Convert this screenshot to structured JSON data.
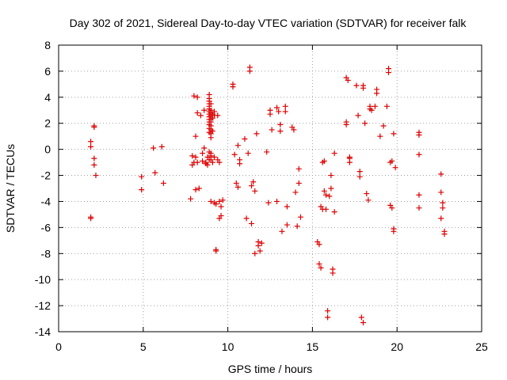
{
  "chart_data": {
    "type": "scatter",
    "title": "Day 302 of 2021, Sidereal Day-to-day VTEC variation (SDTVAR) for receiver falk",
    "xlabel": "GPS time / hours",
    "ylabel": "SDTVAR / TECUs",
    "xlim": [
      0,
      25
    ],
    "ylim": [
      -14,
      8
    ],
    "xticks": [
      0,
      5,
      10,
      15,
      20,
      25
    ],
    "yticks": [
      -14,
      -12,
      -10,
      -8,
      -6,
      -4,
      -2,
      0,
      2,
      4,
      6,
      8
    ],
    "grid": true,
    "marker": "+",
    "color": "#dd0000",
    "series": [
      {
        "name": "SDTVAR",
        "x": [
          1.9,
          1.9,
          1.9,
          1.9,
          2.1,
          2.1,
          2.1,
          2.1,
          2.2,
          4.9,
          4.9,
          5.6,
          5.7,
          6.1,
          6.2,
          7.8,
          7.9,
          7.9,
          8.0,
          8.0,
          8.1,
          8.1,
          8.1,
          8.2,
          8.2,
          8.2,
          8.3,
          8.4,
          8.5,
          8.5,
          8.6,
          8.6,
          8.7,
          8.7,
          8.8,
          8.8,
          8.9,
          8.9,
          8.9,
          8.9,
          8.9,
          8.9,
          8.9,
          8.9,
          8.9,
          8.9,
          8.9,
          8.9,
          8.9,
          8.9,
          8.9,
          8.9,
          9.0,
          9.0,
          9.0,
          9.0,
          9.0,
          9.0,
          9.0,
          9.0,
          9.0,
          9.0,
          9.0,
          9.0,
          9.0,
          9.0,
          9.1,
          9.1,
          9.1,
          9.1,
          9.2,
          9.2,
          9.2,
          9.2,
          9.3,
          9.3,
          9.3,
          9.4,
          9.4,
          9.5,
          9.5,
          9.5,
          9.6,
          9.6,
          9.7,
          10.3,
          10.3,
          10.4,
          10.5,
          10.6,
          10.6,
          10.7,
          10.7,
          11.0,
          11.1,
          11.2,
          11.3,
          11.3,
          11.4,
          11.4,
          11.5,
          11.6,
          11.6,
          11.7,
          11.8,
          11.8,
          11.9,
          12.0,
          12.3,
          12.4,
          12.5,
          12.5,
          12.6,
          12.9,
          12.9,
          13.0,
          13.1,
          13.1,
          13.2,
          13.4,
          13.4,
          13.5,
          13.5,
          13.8,
          13.9,
          14.0,
          14.1,
          14.2,
          14.2,
          14.3,
          15.3,
          15.4,
          15.4,
          15.5,
          15.5,
          15.6,
          15.6,
          15.7,
          15.7,
          15.8,
          15.8,
          15.9,
          15.9,
          16.0,
          16.1,
          16.1,
          16.2,
          16.2,
          16.3,
          16.3,
          17.0,
          17.0,
          17.0,
          17.1,
          17.2,
          17.2,
          17.2,
          17.6,
          17.7,
          17.8,
          17.8,
          17.9,
          18.0,
          18.0,
          18.0,
          18.1,
          18.2,
          18.3,
          18.4,
          18.4,
          18.5,
          18.7,
          18.8,
          18.8,
          19.0,
          19.2,
          19.4,
          19.5,
          19.5,
          19.6,
          19.6,
          19.7,
          19.7,
          19.8,
          19.8,
          19.8,
          19.9,
          21.3,
          21.3,
          21.3,
          21.3,
          21.3,
          22.6,
          22.6,
          22.6,
          22.7,
          22.7,
          22.8,
          22.8
        ],
        "y": [
          0.6,
          0.2,
          -5.2,
          -5.3,
          1.8,
          1.7,
          -0.7,
          -1.2,
          -2.0,
          -2.1,
          -3.1,
          0.1,
          -1.8,
          0.2,
          -2.6,
          -3.8,
          -0.5,
          -1.2,
          4.1,
          -1.0,
          1.0,
          -3.1,
          -0.6,
          -1.0,
          2.8,
          4.0,
          -3.0,
          2.6,
          -0.3,
          -0.9,
          3.0,
          0.1,
          -1.1,
          -1.0,
          -0.6,
          -1.2,
          4.2,
          3.9,
          3.7,
          3.5,
          3.3,
          3.1,
          2.9,
          2.7,
          2.5,
          2.3,
          2.1,
          1.9,
          1.6,
          1.3,
          -0.2,
          -0.8,
          3.5,
          3.0,
          2.8,
          2.6,
          2.3,
          2.1,
          1.8,
          1.5,
          1.2,
          -0.5,
          -0.8,
          -4.0,
          -0.3,
          0.9,
          2.7,
          2.4,
          1.4,
          -1.0,
          2.6,
          -4.1,
          -0.6,
          2.9,
          -7.7,
          -7.8,
          -4.2,
          2.6,
          -0.8,
          -4.0,
          -5.3,
          -1.0,
          -4.4,
          -5.1,
          -3.9,
          5.0,
          4.8,
          -0.4,
          -2.6,
          -2.9,
          0.3,
          -0.8,
          -1.1,
          0.8,
          -5.3,
          -0.3,
          6.3,
          6.0,
          -5.7,
          -2.8,
          -2.5,
          -8.0,
          -3.2,
          1.2,
          -7.1,
          -7.4,
          -7.8,
          -7.2,
          -0.2,
          -4.1,
          3.0,
          2.7,
          1.5,
          3.2,
          -4.0,
          2.9,
          1.9,
          1.4,
          -6.3,
          3.3,
          2.9,
          -4.4,
          -5.8,
          1.7,
          1.5,
          -3.3,
          -5.9,
          -1.5,
          -2.6,
          -5.2,
          -7.1,
          -7.3,
          -8.8,
          -9.1,
          -4.4,
          -4.6,
          -1.0,
          -3.2,
          -0.9,
          -4.6,
          -3.5,
          -12.4,
          -12.9,
          -3.6,
          -2.0,
          -3.0,
          -9.2,
          -9.5,
          -4.8,
          -0.3,
          2.1,
          1.9,
          5.5,
          5.3,
          -0.6,
          -0.7,
          -1.0,
          4.9,
          2.6,
          -1.7,
          -2.1,
          -12.9,
          -13.3,
          4.9,
          4.7,
          2.0,
          -3.4,
          -3.9,
          3.3,
          3.1,
          3.0,
          3.3,
          4.6,
          4.3,
          1.0,
          1.8,
          3.3,
          6.2,
          5.9,
          -1.0,
          -4.3,
          -4.5,
          -0.9,
          1.2,
          -6.1,
          -6.3,
          -1.4,
          1.3,
          1.1,
          -0.4,
          -3.5,
          -4.5,
          -1.9,
          -3.3,
          -5.3,
          -4.1,
          -4.5,
          -6.3,
          -6.5
        ]
      }
    ]
  }
}
